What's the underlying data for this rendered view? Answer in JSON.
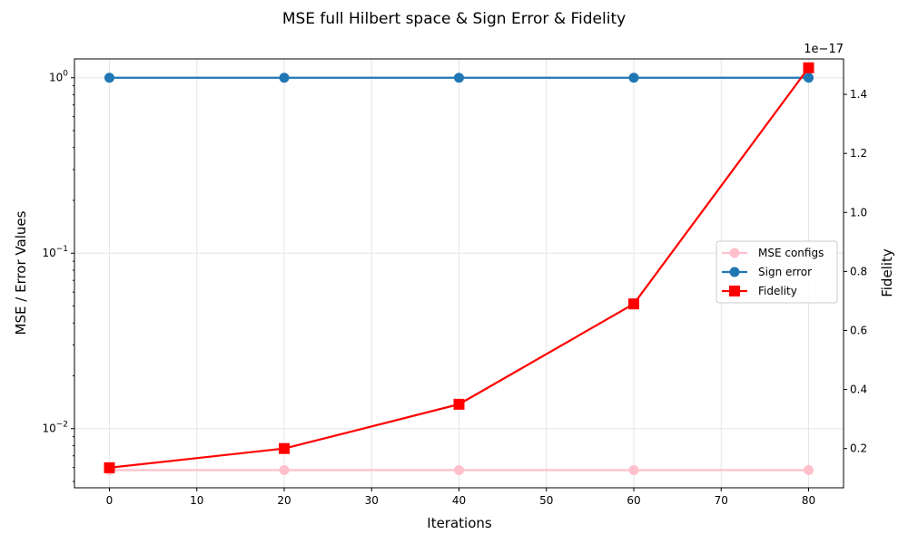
{
  "chart_data": {
    "type": "line",
    "title": "MSE full Hilbert space & Sign Error & Fidelity",
    "xlabel": "Iterations",
    "ylabel_left": "MSE / Error Values",
    "ylabel_right": "Fidelity",
    "right_axis_offset_label": "1e−17",
    "x": [
      0,
      20,
      40,
      60,
      80
    ],
    "xlim": [
      -4,
      84
    ],
    "xticks": [
      0,
      10,
      20,
      30,
      40,
      50,
      60,
      70,
      80
    ],
    "left_scale": "log",
    "ylim_left": [
      0.0046,
      1.28
    ],
    "yticks_left": [
      {
        "value": 0.01,
        "base": "10",
        "exp": "−2"
      },
      {
        "value": 0.1,
        "base": "10",
        "exp": "−1"
      },
      {
        "value": 1,
        "base": "10",
        "exp": "0"
      }
    ],
    "ylim_right": [
      0.067,
      1.52
    ],
    "yticks_right": [
      "0.2",
      "0.4",
      "0.6",
      "0.8",
      "1.0",
      "1.2",
      "1.4"
    ],
    "grid": true,
    "legend_position": "center-right",
    "series": [
      {
        "name": "MSE configs",
        "axis": "left",
        "values": [
          0.0058,
          0.0058,
          0.0058,
          0.0058,
          0.0058
        ],
        "color": "#ffc0cb",
        "marker": "circle"
      },
      {
        "name": "Sign error",
        "axis": "left",
        "values": [
          1.0,
          1.0,
          1.0,
          1.0,
          1.0
        ],
        "color": "#1f77b4",
        "marker": "circle"
      },
      {
        "name": "Fidelity",
        "axis": "right",
        "values": [
          0.135,
          0.2,
          0.35,
          0.69,
          1.49
        ],
        "color": "#ff0000",
        "marker": "square"
      }
    ]
  }
}
